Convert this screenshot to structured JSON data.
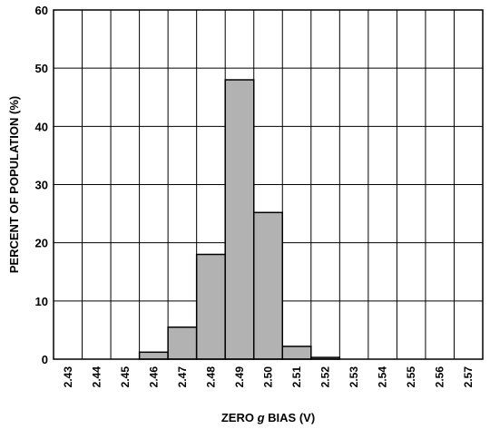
{
  "chart_data": {
    "type": "bar",
    "title": "",
    "xlabel_parts": [
      "ZERO ",
      "g",
      " BIAS (V)"
    ],
    "ylabel": "PERCENT OF POPULATION (%)",
    "categories": [
      "2.43",
      "2.44",
      "2.45",
      "2.46",
      "2.47",
      "2.48",
      "2.49",
      "2.50",
      "2.51",
      "2.52",
      "2.53",
      "2.54",
      "2.55",
      "2.56",
      "2.57"
    ],
    "values": [
      0,
      0,
      0,
      1.2,
      5.5,
      18,
      48,
      25.2,
      2.2,
      0.3,
      0,
      0,
      0,
      0,
      0
    ],
    "ylim": [
      0,
      60
    ],
    "yticks": [
      "0",
      "10",
      "20",
      "30",
      "40",
      "50",
      "60"
    ],
    "grid": true,
    "bar_color": "#b2b2b2"
  }
}
